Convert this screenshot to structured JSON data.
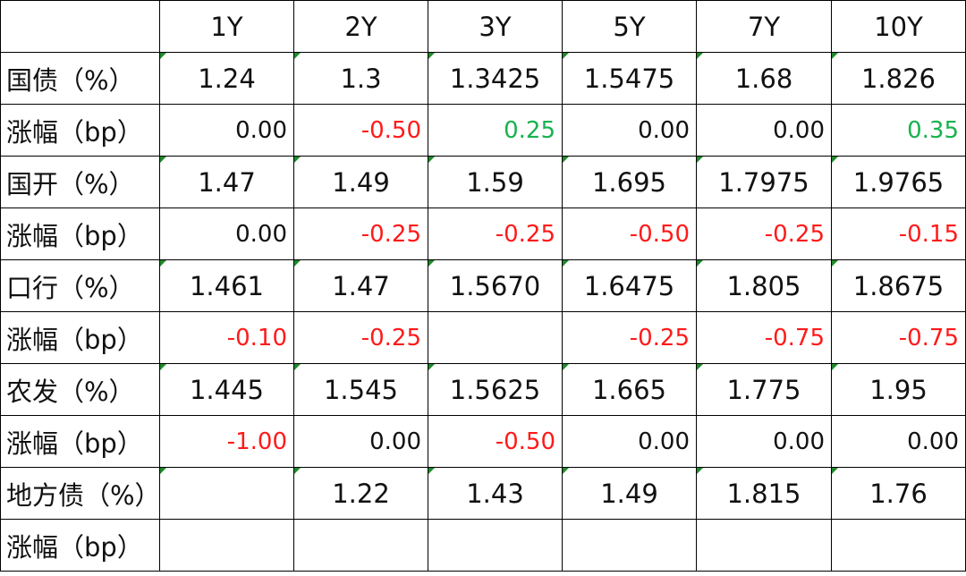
{
  "table": {
    "corner": "",
    "headers": [
      "1Y",
      "2Y",
      "3Y",
      "5Y",
      "7Y",
      "10Y"
    ],
    "rows": [
      {
        "label": "国债（%）",
        "cells": [
          "1.24",
          "1.3",
          "1.3425",
          "1.5475",
          "1.68",
          "1.826"
        ]
      },
      {
        "label": "涨幅（bp）",
        "cells": [
          "0.00",
          "-0.50",
          "0.25",
          "0.00",
          "0.00",
          "0.35"
        ]
      },
      {
        "label": "国开（%）",
        "cells": [
          "1.47",
          "1.49",
          "1.59",
          "1.695",
          "1.7975",
          "1.9765"
        ]
      },
      {
        "label": "涨幅（bp）",
        "cells": [
          "0.00",
          "-0.25",
          "-0.25",
          "-0.50",
          "-0.25",
          "-0.15"
        ]
      },
      {
        "label": "口行（%）",
        "cells": [
          "1.461",
          "1.47",
          "1.5670",
          "1.6475",
          "1.805",
          "1.8675"
        ]
      },
      {
        "label": "涨幅（bp）",
        "cells": [
          "-0.10",
          "-0.25",
          "",
          "-0.25",
          "-0.75",
          "-0.75"
        ]
      },
      {
        "label": "农发（%）",
        "cells": [
          "1.445",
          "1.545",
          "1.5625",
          "1.665",
          "1.775",
          "1.95"
        ]
      },
      {
        "label": "涨幅（bp）",
        "cells": [
          "-1.00",
          "0.00",
          "-0.50",
          "0.00",
          "0.00",
          "0.00"
        ]
      },
      {
        "label": "地方债（%）",
        "cells": [
          "",
          "1.22",
          "1.43",
          "1.49",
          "1.815",
          "1.76"
        ]
      },
      {
        "label": "涨幅（bp）",
        "cells": [
          "",
          "",
          "",
          "",
          "",
          ""
        ]
      }
    ]
  },
  "colors": {
    "negative_change": "#ff1a1a",
    "positive_change": "#17b24f",
    "neutral_text": "#111111",
    "grid_line": "#000000",
    "cell_marker": "#1f8a2c"
  }
}
